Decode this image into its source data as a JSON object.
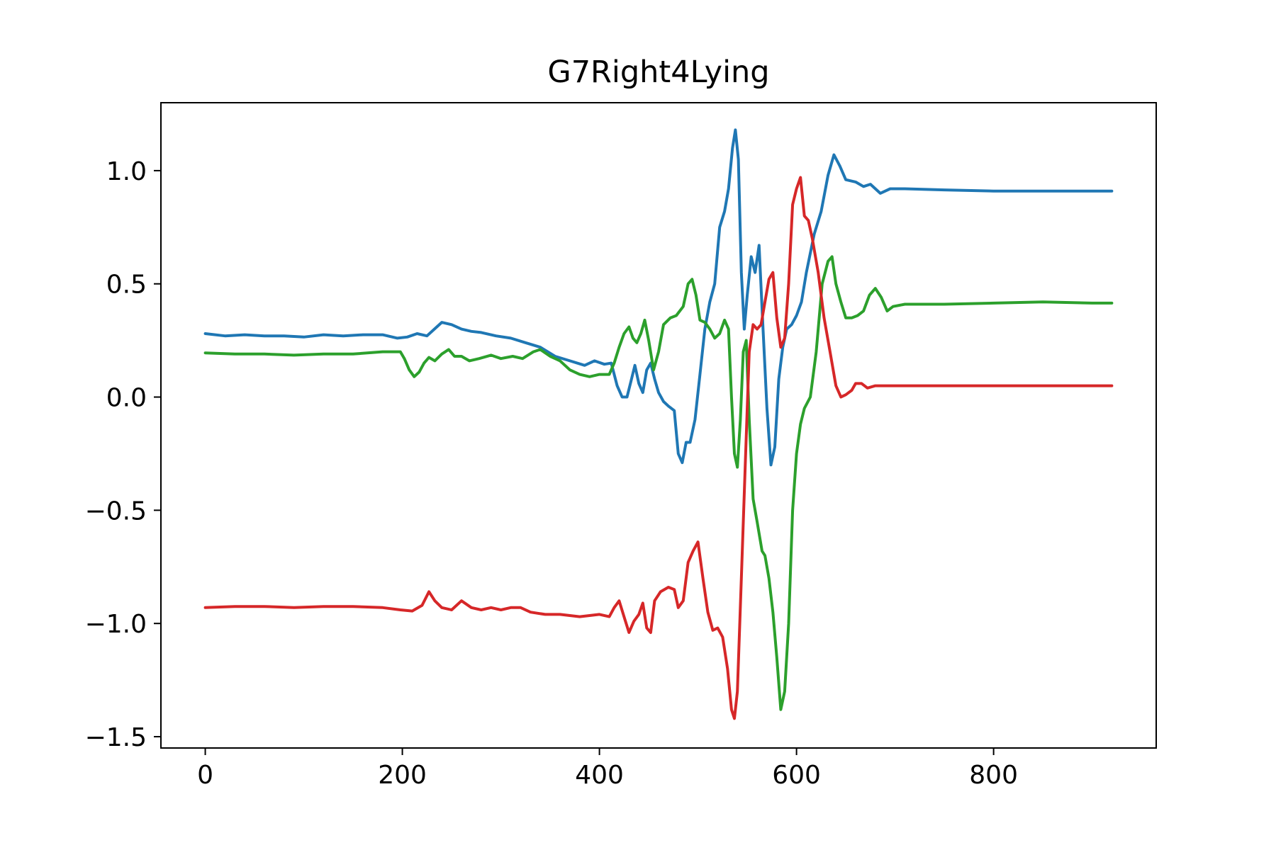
{
  "chart_data": {
    "type": "line",
    "title": "G7Right4Lying",
    "xlabel": "",
    "ylabel": "",
    "xlim": [
      -45,
      965
    ],
    "ylim": [
      -1.55,
      1.3
    ],
    "xticks": [
      0,
      200,
      400,
      600,
      800
    ],
    "xtick_labels": [
      "0",
      "200",
      "400",
      "600",
      "800"
    ],
    "yticks": [
      1.0,
      0.5,
      0.0,
      -0.5,
      -1.0,
      -1.5
    ],
    "ytick_labels": [
      "1.0",
      "0.5",
      "0.0",
      "−0.5",
      "−1.0",
      "−1.5"
    ],
    "grid": false,
    "series": [
      {
        "color": "#1f77b4",
        "points": [
          [
            0,
            0.28
          ],
          [
            20,
            0.27
          ],
          [
            40,
            0.275
          ],
          [
            60,
            0.27
          ],
          [
            80,
            0.27
          ],
          [
            100,
            0.265
          ],
          [
            120,
            0.275
          ],
          [
            140,
            0.27
          ],
          [
            160,
            0.275
          ],
          [
            180,
            0.275
          ],
          [
            195,
            0.26
          ],
          [
            205,
            0.265
          ],
          [
            215,
            0.28
          ],
          [
            225,
            0.27
          ],
          [
            235,
            0.31
          ],
          [
            240,
            0.33
          ],
          [
            250,
            0.32
          ],
          [
            260,
            0.3
          ],
          [
            270,
            0.29
          ],
          [
            280,
            0.285
          ],
          [
            295,
            0.27
          ],
          [
            310,
            0.26
          ],
          [
            325,
            0.24
          ],
          [
            340,
            0.22
          ],
          [
            355,
            0.18
          ],
          [
            370,
            0.16
          ],
          [
            385,
            0.14
          ],
          [
            395,
            0.16
          ],
          [
            405,
            0.145
          ],
          [
            412,
            0.15
          ],
          [
            418,
            0.05
          ],
          [
            423,
            0.0
          ],
          [
            428,
            0.0
          ],
          [
            432,
            0.07
          ],
          [
            436,
            0.14
          ],
          [
            440,
            0.06
          ],
          [
            444,
            0.02
          ],
          [
            448,
            0.12
          ],
          [
            452,
            0.15
          ],
          [
            456,
            0.08
          ],
          [
            460,
            0.02
          ],
          [
            465,
            -0.02
          ],
          [
            470,
            -0.04
          ],
          [
            476,
            -0.06
          ],
          [
            480,
            -0.25
          ],
          [
            484,
            -0.29
          ],
          [
            488,
            -0.2
          ],
          [
            492,
            -0.2
          ],
          [
            497,
            -0.1
          ],
          [
            502,
            0.1
          ],
          [
            507,
            0.3
          ],
          [
            512,
            0.42
          ],
          [
            517,
            0.5
          ],
          [
            522,
            0.75
          ],
          [
            527,
            0.82
          ],
          [
            531,
            0.92
          ],
          [
            535,
            1.1
          ],
          [
            538,
            1.18
          ],
          [
            541,
            1.05
          ],
          [
            544,
            0.55
          ],
          [
            547,
            0.3
          ],
          [
            550,
            0.45
          ],
          [
            554,
            0.62
          ],
          [
            558,
            0.55
          ],
          [
            562,
            0.67
          ],
          [
            566,
            0.3
          ],
          [
            570,
            -0.05
          ],
          [
            574,
            -0.3
          ],
          [
            578,
            -0.22
          ],
          [
            582,
            0.08
          ],
          [
            586,
            0.22
          ],
          [
            590,
            0.3
          ],
          [
            595,
            0.32
          ],
          [
            600,
            0.36
          ],
          [
            605,
            0.42
          ],
          [
            610,
            0.55
          ],
          [
            618,
            0.72
          ],
          [
            625,
            0.82
          ],
          [
            632,
            0.98
          ],
          [
            638,
            1.07
          ],
          [
            644,
            1.02
          ],
          [
            650,
            0.96
          ],
          [
            660,
            0.95
          ],
          [
            668,
            0.93
          ],
          [
            675,
            0.94
          ],
          [
            685,
            0.9
          ],
          [
            695,
            0.92
          ],
          [
            710,
            0.92
          ],
          [
            750,
            0.915
          ],
          [
            800,
            0.91
          ],
          [
            850,
            0.91
          ],
          [
            900,
            0.91
          ],
          [
            920,
            0.91
          ]
        ]
      },
      {
        "color": "#2ca02c",
        "points": [
          [
            0,
            0.195
          ],
          [
            30,
            0.19
          ],
          [
            60,
            0.19
          ],
          [
            90,
            0.185
          ],
          [
            120,
            0.19
          ],
          [
            150,
            0.19
          ],
          [
            180,
            0.2
          ],
          [
            198,
            0.2
          ],
          [
            202,
            0.17
          ],
          [
            207,
            0.12
          ],
          [
            212,
            0.09
          ],
          [
            217,
            0.11
          ],
          [
            222,
            0.15
          ],
          [
            227,
            0.175
          ],
          [
            233,
            0.16
          ],
          [
            240,
            0.19
          ],
          [
            247,
            0.21
          ],
          [
            253,
            0.18
          ],
          [
            260,
            0.18
          ],
          [
            268,
            0.16
          ],
          [
            278,
            0.17
          ],
          [
            290,
            0.185
          ],
          [
            300,
            0.17
          ],
          [
            312,
            0.18
          ],
          [
            322,
            0.17
          ],
          [
            333,
            0.2
          ],
          [
            340,
            0.21
          ],
          [
            350,
            0.18
          ],
          [
            360,
            0.16
          ],
          [
            370,
            0.12
          ],
          [
            380,
            0.1
          ],
          [
            390,
            0.09
          ],
          [
            400,
            0.1
          ],
          [
            410,
            0.1
          ],
          [
            415,
            0.15
          ],
          [
            420,
            0.22
          ],
          [
            425,
            0.28
          ],
          [
            430,
            0.31
          ],
          [
            434,
            0.26
          ],
          [
            438,
            0.24
          ],
          [
            442,
            0.28
          ],
          [
            446,
            0.34
          ],
          [
            450,
            0.25
          ],
          [
            455,
            0.12
          ],
          [
            460,
            0.2
          ],
          [
            465,
            0.32
          ],
          [
            472,
            0.35
          ],
          [
            478,
            0.36
          ],
          [
            485,
            0.4
          ],
          [
            490,
            0.5
          ],
          [
            494,
            0.52
          ],
          [
            498,
            0.45
          ],
          [
            502,
            0.34
          ],
          [
            507,
            0.33
          ],
          [
            512,
            0.3
          ],
          [
            517,
            0.26
          ],
          [
            522,
            0.28
          ],
          [
            527,
            0.34
          ],
          [
            531,
            0.3
          ],
          [
            534,
            0.0
          ],
          [
            537,
            -0.25
          ],
          [
            540,
            -0.31
          ],
          [
            543,
            -0.1
          ],
          [
            546,
            0.2
          ],
          [
            549,
            0.25
          ],
          [
            552,
            -0.1
          ],
          [
            556,
            -0.45
          ],
          [
            560,
            -0.55
          ],
          [
            565,
            -0.68
          ],
          [
            568,
            -0.7
          ],
          [
            572,
            -0.8
          ],
          [
            576,
            -0.95
          ],
          [
            580,
            -1.15
          ],
          [
            584,
            -1.38
          ],
          [
            588,
            -1.3
          ],
          [
            592,
            -1.0
          ],
          [
            596,
            -0.5
          ],
          [
            600,
            -0.25
          ],
          [
            604,
            -0.12
          ],
          [
            608,
            -0.05
          ],
          [
            614,
            0.0
          ],
          [
            620,
            0.2
          ],
          [
            626,
            0.5
          ],
          [
            632,
            0.6
          ],
          [
            636,
            0.62
          ],
          [
            640,
            0.5
          ],
          [
            645,
            0.42
          ],
          [
            650,
            0.35
          ],
          [
            656,
            0.35
          ],
          [
            662,
            0.36
          ],
          [
            668,
            0.38
          ],
          [
            674,
            0.45
          ],
          [
            680,
            0.48
          ],
          [
            686,
            0.44
          ],
          [
            692,
            0.38
          ],
          [
            698,
            0.4
          ],
          [
            710,
            0.41
          ],
          [
            750,
            0.41
          ],
          [
            800,
            0.415
          ],
          [
            850,
            0.42
          ],
          [
            900,
            0.415
          ],
          [
            920,
            0.415
          ]
        ]
      },
      {
        "color": "#d62728",
        "points": [
          [
            0,
            -0.93
          ],
          [
            30,
            -0.925
          ],
          [
            60,
            -0.925
          ],
          [
            90,
            -0.93
          ],
          [
            120,
            -0.925
          ],
          [
            150,
            -0.925
          ],
          [
            180,
            -0.93
          ],
          [
            198,
            -0.94
          ],
          [
            210,
            -0.945
          ],
          [
            220,
            -0.92
          ],
          [
            227,
            -0.86
          ],
          [
            233,
            -0.9
          ],
          [
            240,
            -0.93
          ],
          [
            250,
            -0.94
          ],
          [
            260,
            -0.9
          ],
          [
            270,
            -0.93
          ],
          [
            280,
            -0.94
          ],
          [
            290,
            -0.93
          ],
          [
            300,
            -0.94
          ],
          [
            310,
            -0.93
          ],
          [
            320,
            -0.93
          ],
          [
            330,
            -0.95
          ],
          [
            345,
            -0.96
          ],
          [
            360,
            -0.96
          ],
          [
            380,
            -0.97
          ],
          [
            400,
            -0.96
          ],
          [
            410,
            -0.97
          ],
          [
            415,
            -0.93
          ],
          [
            420,
            -0.9
          ],
          [
            425,
            -0.97
          ],
          [
            430,
            -1.04
          ],
          [
            435,
            -0.99
          ],
          [
            440,
            -0.96
          ],
          [
            444,
            -0.91
          ],
          [
            448,
            -1.02
          ],
          [
            452,
            -1.04
          ],
          [
            456,
            -0.9
          ],
          [
            462,
            -0.86
          ],
          [
            470,
            -0.84
          ],
          [
            476,
            -0.85
          ],
          [
            480,
            -0.93
          ],
          [
            485,
            -0.9
          ],
          [
            490,
            -0.73
          ],
          [
            495,
            -0.68
          ],
          [
            500,
            -0.64
          ],
          [
            505,
            -0.8
          ],
          [
            510,
            -0.95
          ],
          [
            515,
            -1.03
          ],
          [
            520,
            -1.02
          ],
          [
            525,
            -1.06
          ],
          [
            530,
            -1.2
          ],
          [
            534,
            -1.38
          ],
          [
            537,
            -1.42
          ],
          [
            540,
            -1.3
          ],
          [
            544,
            -0.8
          ],
          [
            548,
            -0.3
          ],
          [
            552,
            0.2
          ],
          [
            556,
            0.32
          ],
          [
            560,
            0.3
          ],
          [
            564,
            0.32
          ],
          [
            568,
            0.42
          ],
          [
            572,
            0.52
          ],
          [
            576,
            0.55
          ],
          [
            580,
            0.35
          ],
          [
            584,
            0.22
          ],
          [
            588,
            0.26
          ],
          [
            592,
            0.5
          ],
          [
            596,
            0.85
          ],
          [
            600,
            0.92
          ],
          [
            604,
            0.97
          ],
          [
            608,
            0.8
          ],
          [
            612,
            0.78
          ],
          [
            616,
            0.7
          ],
          [
            622,
            0.55
          ],
          [
            628,
            0.35
          ],
          [
            634,
            0.2
          ],
          [
            640,
            0.05
          ],
          [
            645,
            0.0
          ],
          [
            650,
            0.01
          ],
          [
            656,
            0.03
          ],
          [
            660,
            0.06
          ],
          [
            666,
            0.06
          ],
          [
            672,
            0.04
          ],
          [
            680,
            0.05
          ],
          [
            700,
            0.05
          ],
          [
            750,
            0.05
          ],
          [
            800,
            0.05
          ],
          [
            850,
            0.05
          ],
          [
            900,
            0.05
          ],
          [
            920,
            0.05
          ]
        ]
      }
    ]
  }
}
